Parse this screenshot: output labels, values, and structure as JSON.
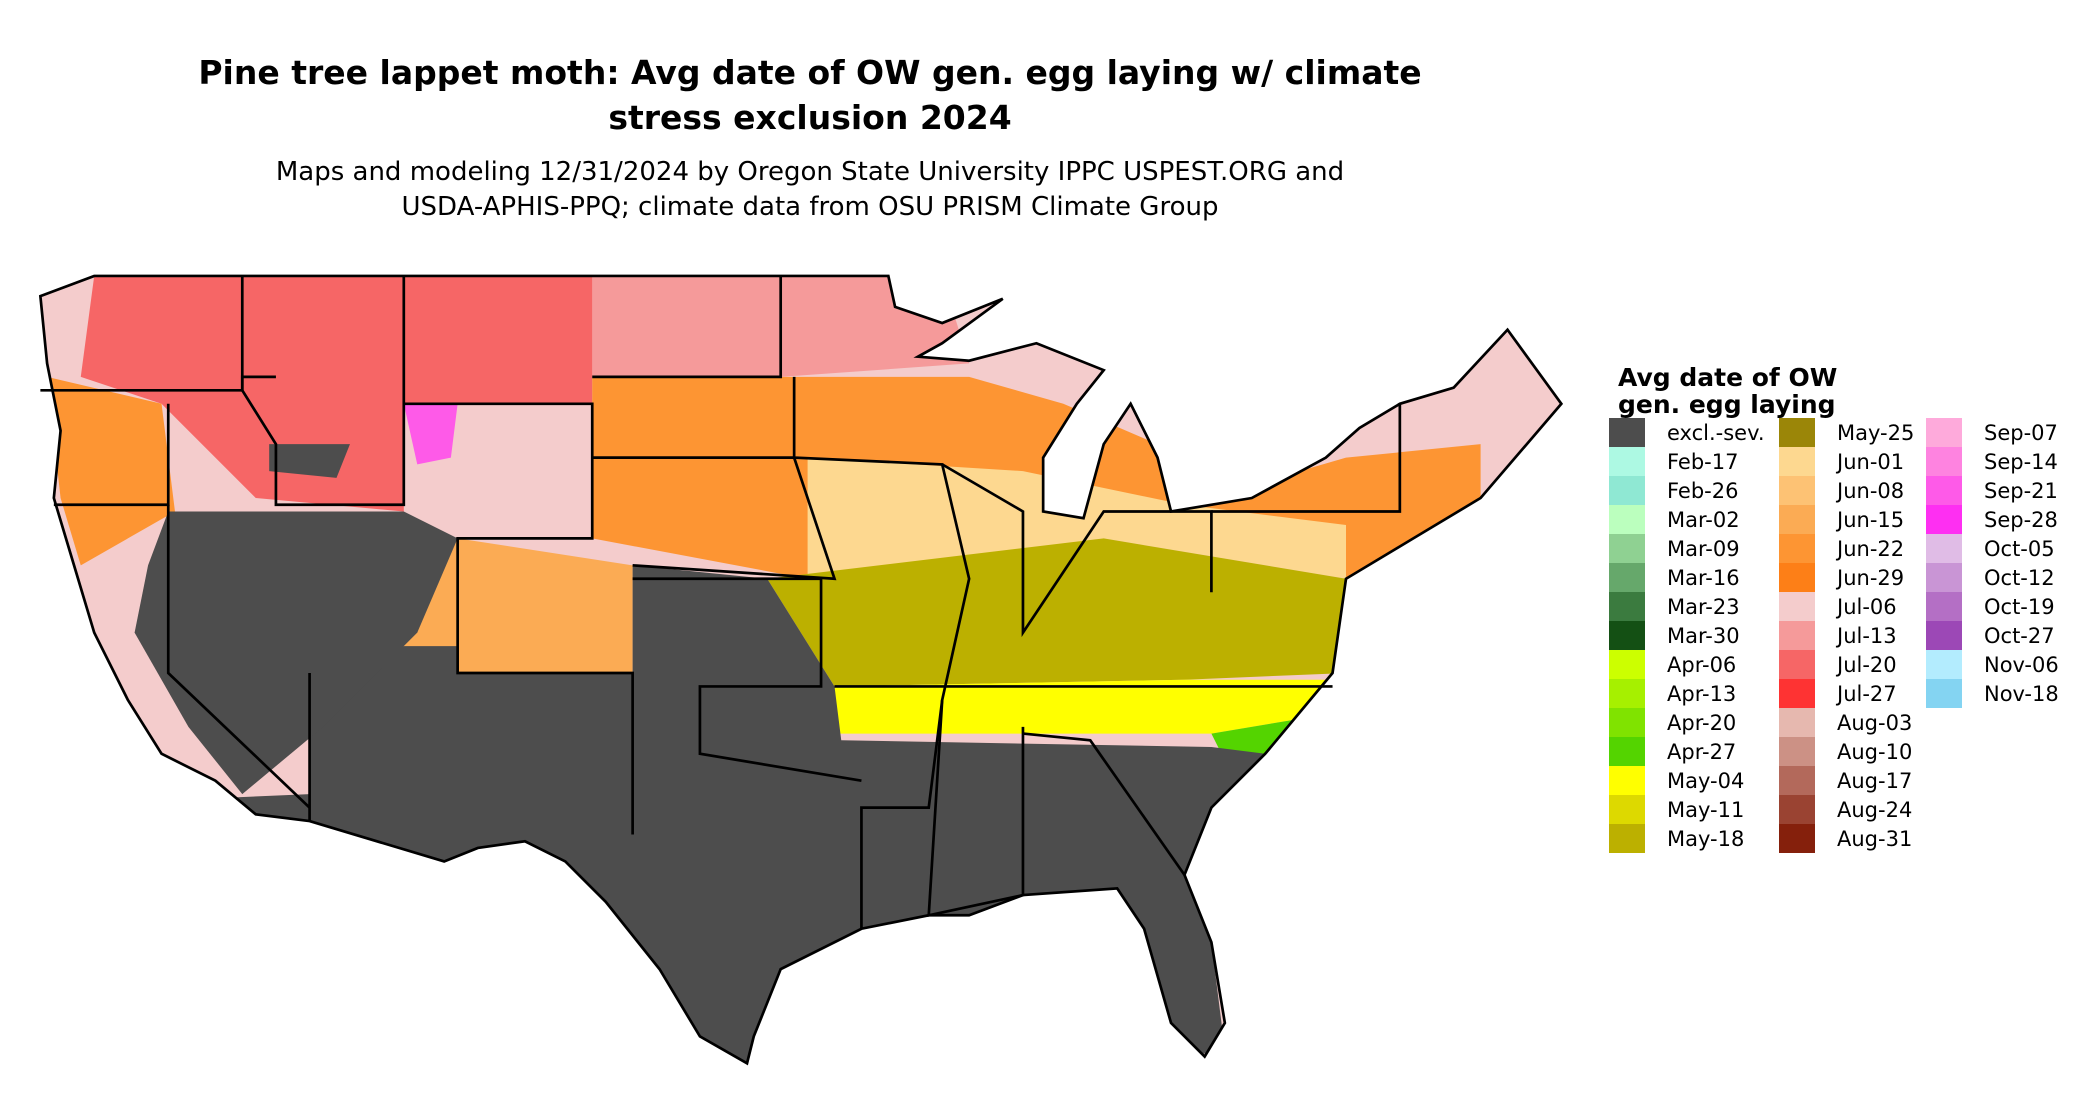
{
  "title": "Pine tree lappet moth: Avg date of OW gen. egg laying w/ climate stress exclusion 2024",
  "title_line1": "Pine tree lappet moth: Avg date of OW gen. egg laying w/ climate",
  "title_line2": "stress exclusion 2024",
  "subtitle_line1": "Maps and modeling 12/31/2024 by Oregon State University IPPC USPEST.ORG and",
  "subtitle_line2": "USDA-APHIS-PPQ; climate data from OSU PRISM Climate Group",
  "legend": {
    "title_line1": "Avg date of OW",
    "title_line2": "gen. egg laying",
    "columns": [
      [
        {
          "label": "excl.-sev.",
          "color": "#4d4d4d"
        },
        {
          "label": "Feb-17",
          "color": "#adf9e3"
        },
        {
          "label": "Feb-26",
          "color": "#8fe8d3"
        },
        {
          "label": "Mar-02",
          "color": "#bbffbe"
        },
        {
          "label": "Mar-09",
          "color": "#8fd192"
        },
        {
          "label": "Mar-16",
          "color": "#66a86b"
        },
        {
          "label": "Mar-23",
          "color": "#3b7b3f"
        },
        {
          "label": "Mar-30",
          "color": "#145014"
        },
        {
          "label": "Apr-06",
          "color": "#ccff00"
        },
        {
          "label": "Apr-13",
          "color": "#a6f000"
        },
        {
          "label": "Apr-20",
          "color": "#80e300"
        },
        {
          "label": "Apr-27",
          "color": "#54d400"
        },
        {
          "label": "May-04",
          "color": "#ffff00"
        },
        {
          "label": "May-11",
          "color": "#ddd900"
        },
        {
          "label": "May-18",
          "color": "#bcb000"
        }
      ],
      [
        {
          "label": "May-25",
          "color": "#9b8608"
        },
        {
          "label": "Jun-01",
          "color": "#fdd890"
        },
        {
          "label": "Jun-08",
          "color": "#fdc274"
        },
        {
          "label": "Jun-15",
          "color": "#fbab54"
        },
        {
          "label": "Jun-22",
          "color": "#fd9533"
        },
        {
          "label": "Jun-29",
          "color": "#fd7f17"
        },
        {
          "label": "Jul-06",
          "color": "#f4cccc"
        },
        {
          "label": "Jul-13",
          "color": "#f59a9a"
        },
        {
          "label": "Jul-20",
          "color": "#f66666"
        },
        {
          "label": "Jul-27",
          "color": "#fe3333"
        },
        {
          "label": "Aug-03",
          "color": "#e6b8af"
        },
        {
          "label": "Aug-10",
          "color": "#cc9185"
        },
        {
          "label": "Aug-17",
          "color": "#b3695b"
        },
        {
          "label": "Aug-24",
          "color": "#9a4332"
        },
        {
          "label": "Aug-31",
          "color": "#85200c"
        }
      ],
      [
        {
          "label": "Sep-07",
          "color": "#feaadb"
        },
        {
          "label": "Sep-14",
          "color": "#fe83e0"
        },
        {
          "label": "Sep-21",
          "color": "#fe5ae8"
        },
        {
          "label": "Sep-28",
          "color": "#fe2ff2"
        },
        {
          "label": "Oct-05",
          "color": "#e0bce6"
        },
        {
          "label": "Oct-12",
          "color": "#c995d5"
        },
        {
          "label": "Oct-19",
          "color": "#b46fc5"
        },
        {
          "label": "Oct-27",
          "color": "#9c48b6"
        },
        {
          "label": "Nov-06",
          "color": "#b3ecfe"
        },
        {
          "label": "Nov-18",
          "color": "#84d4f2"
        }
      ]
    ]
  }
}
